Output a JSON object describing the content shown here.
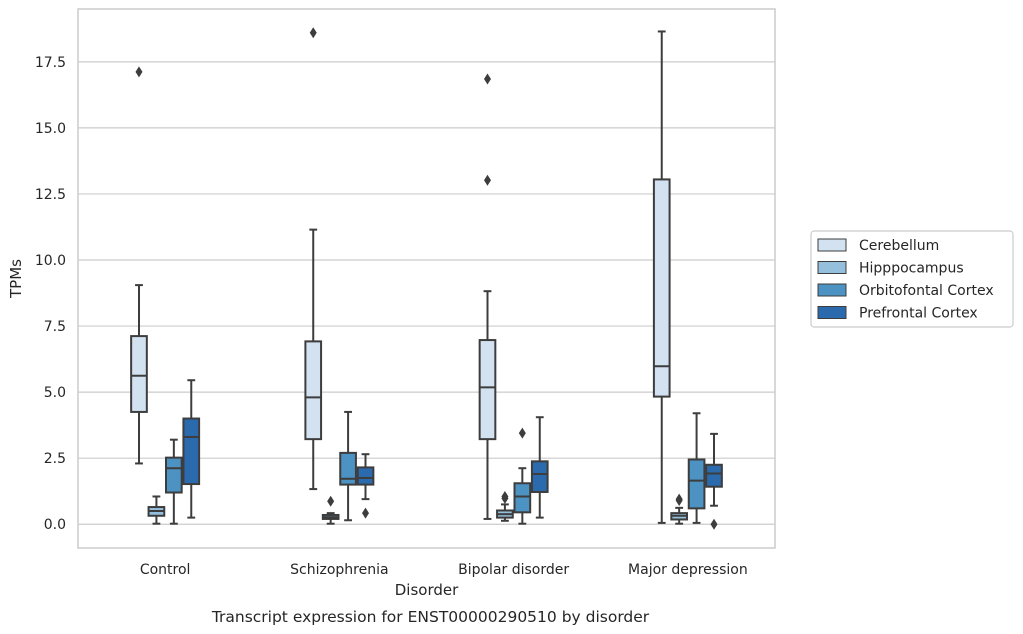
{
  "chart_data": {
    "type": "box",
    "xlabel": "Disorder",
    "ylabel": "TPMs",
    "caption": "Transcript expression for ENST00000290510 by disorder",
    "ylim": [
      -0.9,
      19.5
    ],
    "yticks": [
      0.0,
      2.5,
      5.0,
      7.5,
      10.0,
      12.5,
      15.0,
      17.5
    ],
    "ytick_labels": [
      "0.0",
      "2.5",
      "5.0",
      "7.5",
      "10.0",
      "12.5",
      "15.0",
      "17.5"
    ],
    "grid": "horizontal",
    "legend_position": "right",
    "categories": [
      "Control",
      "Schizophrenia",
      "Bipolar disorder",
      "Major depression"
    ],
    "series": [
      {
        "name": "Cerebellum",
        "color": "#d3e2f1",
        "boxes": [
          {
            "q1": 4.25,
            "median": 5.62,
            "q3": 7.12,
            "whislo": 2.3,
            "whishi": 9.05,
            "fliers": [
              17.12
            ]
          },
          {
            "q1": 3.22,
            "median": 4.8,
            "q3": 6.92,
            "whislo": 1.33,
            "whishi": 11.15,
            "fliers": [
              18.6
            ]
          },
          {
            "q1": 3.22,
            "median": 5.18,
            "q3": 6.97,
            "whislo": 0.2,
            "whishi": 8.82,
            "fliers": [
              13.02,
              16.85
            ]
          },
          {
            "q1": 4.83,
            "median": 5.98,
            "q3": 13.05,
            "whislo": 0.05,
            "whishi": 18.65,
            "fliers": []
          }
        ]
      },
      {
        "name": "Hipppocampus",
        "color": "#94bfdd",
        "boxes": [
          {
            "q1": 0.32,
            "median": 0.5,
            "q3": 0.65,
            "whislo": 0.02,
            "whishi": 1.05,
            "fliers": []
          },
          {
            "q1": 0.2,
            "median": 0.27,
            "q3": 0.35,
            "whislo": 0.02,
            "whishi": 0.42,
            "fliers": [
              0.87
            ]
          },
          {
            "q1": 0.25,
            "median": 0.38,
            "q3": 0.52,
            "whislo": 0.13,
            "whishi": 0.75,
            "fliers": [
              0.98,
              1.05
            ]
          },
          {
            "q1": 0.18,
            "median": 0.32,
            "q3": 0.42,
            "whislo": 0.02,
            "whishi": 0.62,
            "fliers": [
              0.9,
              0.95
            ]
          }
        ]
      },
      {
        "name": "Orbitofontal Cortex",
        "color": "#4c92c3",
        "boxes": [
          {
            "q1": 1.2,
            "median": 2.12,
            "q3": 2.52,
            "whislo": 0.02,
            "whishi": 3.2,
            "fliers": []
          },
          {
            "q1": 1.5,
            "median": 1.72,
            "q3": 2.7,
            "whislo": 0.15,
            "whishi": 4.25,
            "fliers": []
          },
          {
            "q1": 0.45,
            "median": 1.05,
            "q3": 1.55,
            "whislo": 0.02,
            "whishi": 2.12,
            "fliers": [
              3.45
            ]
          },
          {
            "q1": 0.6,
            "median": 1.65,
            "q3": 2.45,
            "whislo": 0.05,
            "whishi": 4.2,
            "fliers": []
          }
        ]
      },
      {
        "name": "Prefrontal Cortex",
        "color": "#2b6aad",
        "boxes": [
          {
            "q1": 1.52,
            "median": 3.3,
            "q3": 4.0,
            "whislo": 0.25,
            "whishi": 5.45,
            "fliers": []
          },
          {
            "q1": 1.5,
            "median": 1.75,
            "q3": 2.15,
            "whislo": 0.95,
            "whishi": 2.65,
            "fliers": [
              0.42
            ]
          },
          {
            "q1": 1.22,
            "median": 1.9,
            "q3": 2.38,
            "whislo": 0.25,
            "whishi": 4.05,
            "fliers": []
          },
          {
            "q1": 1.42,
            "median": 1.92,
            "q3": 2.25,
            "whislo": 0.7,
            "whishi": 3.42,
            "fliers": [
              0.0
            ]
          }
        ]
      }
    ]
  }
}
